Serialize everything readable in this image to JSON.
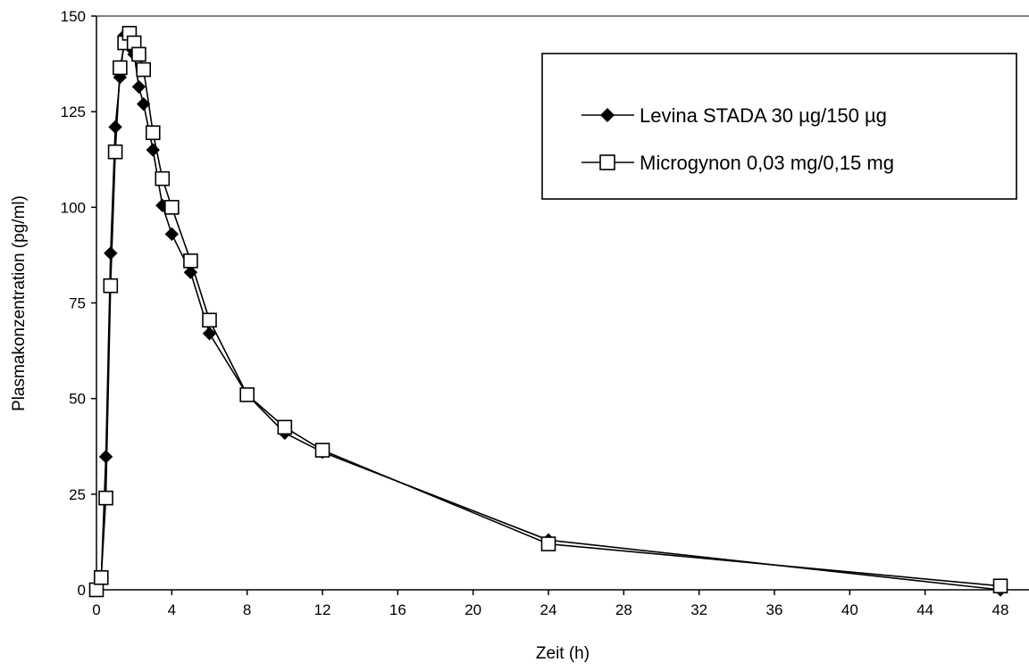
{
  "chart_data": {
    "type": "line",
    "title": "",
    "xlabel": "Zeit (h)",
    "ylabel": "Plasmakonzentration (pg/ml)",
    "xlim": [
      0,
      50
    ],
    "ylim": [
      0,
      150
    ],
    "xticks": [
      0,
      4,
      8,
      12,
      16,
      20,
      24,
      28,
      32,
      36,
      40,
      44,
      48
    ],
    "yticks": [
      0,
      25,
      50,
      75,
      100,
      125,
      150
    ],
    "grid": false,
    "legend_position": "top-right",
    "series": [
      {
        "name": "Levina STADA 30 µg/150 µg",
        "marker": "filled-diamond",
        "color": "#000000",
        "points": [
          {
            "x": 0,
            "y": 0
          },
          {
            "x": 0.25,
            "y": 3
          },
          {
            "x": 0.5,
            "y": 34.8
          },
          {
            "x": 0.75,
            "y": 88
          },
          {
            "x": 1,
            "y": 121
          },
          {
            "x": 1.25,
            "y": 134
          },
          {
            "x": 1.5,
            "y": 145
          },
          {
            "x": 1.75,
            "y": 142
          },
          {
            "x": 2,
            "y": 140
          },
          {
            "x": 2.25,
            "y": 131.5
          },
          {
            "x": 2.5,
            "y": 127
          },
          {
            "x": 3,
            "y": 115
          },
          {
            "x": 3.5,
            "y": 100.5
          },
          {
            "x": 4,
            "y": 93
          },
          {
            "x": 5,
            "y": 83
          },
          {
            "x": 6,
            "y": 67
          },
          {
            "x": 8,
            "y": 51
          },
          {
            "x": 10,
            "y": 41
          },
          {
            "x": 12,
            "y": 36
          },
          {
            "x": 24,
            "y": 13
          },
          {
            "x": 48,
            "y": 0
          }
        ]
      },
      {
        "name": "Microgynon 0,03 mg/0,15 mg",
        "marker": "open-square",
        "color": "#000000",
        "points": [
          {
            "x": 0,
            "y": 0
          },
          {
            "x": 0.25,
            "y": 3.2
          },
          {
            "x": 0.5,
            "y": 24
          },
          {
            "x": 0.75,
            "y": 79.5
          },
          {
            "x": 1,
            "y": 114.5
          },
          {
            "x": 1.25,
            "y": 136.5
          },
          {
            "x": 1.5,
            "y": 143
          },
          {
            "x": 1.75,
            "y": 145.5
          },
          {
            "x": 2,
            "y": 143
          },
          {
            "x": 2.25,
            "y": 140
          },
          {
            "x": 2.5,
            "y": 136
          },
          {
            "x": 3,
            "y": 119.5
          },
          {
            "x": 3.5,
            "y": 107.5
          },
          {
            "x": 4,
            "y": 100
          },
          {
            "x": 5,
            "y": 86
          },
          {
            "x": 6,
            "y": 70.5
          },
          {
            "x": 8,
            "y": 51
          },
          {
            "x": 10,
            "y": 42.5
          },
          {
            "x": 12,
            "y": 36.5
          },
          {
            "x": 24,
            "y": 12
          },
          {
            "x": 48,
            "y": 1
          }
        ]
      }
    ]
  }
}
